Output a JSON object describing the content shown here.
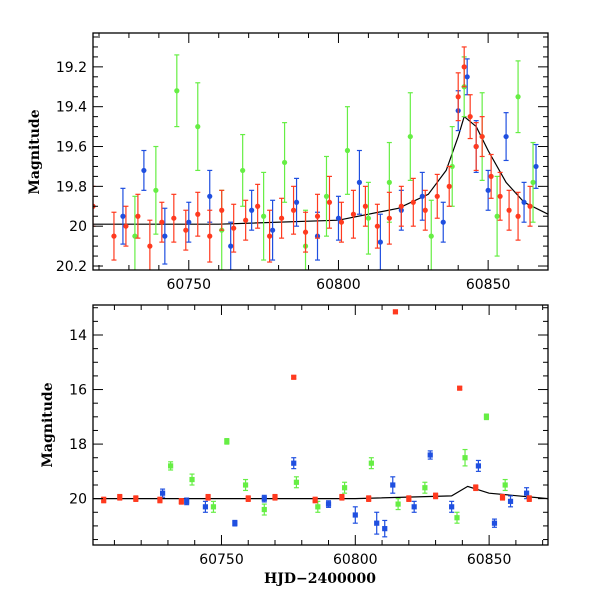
{
  "colors": {
    "blue": "#1f4fe0",
    "green": "#66ee44",
    "red": "#ff3a1f",
    "model": "#000000"
  },
  "chart_data": [
    {
      "type": "scatter",
      "title": "",
      "xlabel": "",
      "ylabel": "Magnitude",
      "xlim": [
        60718,
        60870
      ],
      "ylim": [
        20.22,
        19.03
      ],
      "y_inverted": true,
      "grid": false,
      "xticks": [
        "60750",
        "60800",
        "60850"
      ],
      "yticks": [
        "19.2",
        "19.4",
        "19.6",
        "19.8",
        "20",
        "20.2"
      ],
      "model_curve": {
        "x": [
          60718,
          60760,
          60800,
          60820,
          60830,
          60836,
          60840,
          60842,
          60846,
          60850,
          60856,
          60862,
          60870
        ],
        "y": [
          19.99,
          19.99,
          19.97,
          19.91,
          19.84,
          19.72,
          19.55,
          19.45,
          19.5,
          19.62,
          19.78,
          19.88,
          19.94
        ]
      },
      "series": [
        {
          "color_key": "blue",
          "x": [
            60728,
            60735,
            60742,
            60750,
            60757,
            60764,
            60771,
            60778,
            60786,
            60793,
            60800,
            60807,
            60814,
            60821,
            60828,
            60835,
            60840,
            60843,
            60846,
            60850,
            60856,
            60862,
            60866
          ],
          "y": [
            19.95,
            19.72,
            20.05,
            19.98,
            19.85,
            20.1,
            19.92,
            20.02,
            19.88,
            20.05,
            19.96,
            19.78,
            20.08,
            19.92,
            19.85,
            19.98,
            19.42,
            19.25,
            19.6,
            19.82,
            19.55,
            19.88,
            19.7
          ],
          "err": [
            0.14,
            0.1,
            0.14,
            0.1,
            0.13,
            0.12,
            0.1,
            0.15,
            0.12,
            0.12,
            0.11,
            0.16,
            0.14,
            0.1,
            0.12,
            0.1,
            0.1,
            0.09,
            0.13,
            0.1,
            0.12,
            0.1,
            0.11
          ]
        },
        {
          "color_key": "green",
          "x": [
            60732,
            60739,
            60746,
            60753,
            60761,
            60768,
            60775,
            60782,
            60789,
            60796,
            60803,
            60810,
            60817,
            60824,
            60831,
            60838,
            60842,
            60848,
            60853,
            60860,
            60865
          ],
          "y": [
            20.05,
            19.82,
            19.32,
            19.5,
            20.02,
            19.72,
            19.95,
            19.68,
            20.1,
            19.85,
            19.62,
            19.96,
            19.78,
            19.55,
            20.05,
            19.7,
            19.3,
            19.55,
            19.95,
            19.35,
            19.78
          ],
          "err": [
            0.2,
            0.22,
            0.18,
            0.22,
            0.2,
            0.18,
            0.22,
            0.2,
            0.18,
            0.2,
            0.22,
            0.18,
            0.2,
            0.22,
            0.18,
            0.2,
            0.15,
            0.22,
            0.2,
            0.18,
            0.2
          ]
        },
        {
          "color_key": "red",
          "x": [
            60718,
            60725,
            60729,
            60733,
            60737,
            60741,
            60745,
            60749,
            60753,
            60757,
            60761,
            60765,
            60769,
            60773,
            60777,
            60781,
            60785,
            60789,
            60793,
            60797,
            60801,
            60805,
            60809,
            60813,
            60817,
            60821,
            60825,
            60829,
            60833,
            60837,
            60840,
            60842,
            60844,
            60846,
            60848,
            60851,
            60854,
            60857,
            60860,
            60864
          ],
          "y": [
            19.9,
            20.05,
            20.0,
            19.95,
            20.1,
            19.98,
            19.96,
            20.02,
            19.94,
            20.05,
            19.92,
            20.01,
            19.97,
            19.9,
            20.05,
            19.96,
            19.92,
            20.03,
            19.95,
            19.88,
            19.98,
            19.94,
            19.9,
            20.0,
            19.96,
            19.9,
            19.88,
            19.92,
            19.85,
            19.8,
            19.35,
            19.2,
            19.45,
            19.6,
            19.55,
            19.75,
            19.85,
            19.92,
            19.95,
            19.9
          ],
          "err": [
            0.1,
            0.12,
            0.1,
            0.11,
            0.13,
            0.1,
            0.12,
            0.1,
            0.11,
            0.13,
            0.1,
            0.12,
            0.1,
            0.11,
            0.13,
            0.1,
            0.12,
            0.1,
            0.11,
            0.13,
            0.1,
            0.12,
            0.1,
            0.11,
            0.13,
            0.1,
            0.12,
            0.1,
            0.11,
            0.1,
            0.12,
            0.1,
            0.11,
            0.12,
            0.1,
            0.11,
            0.12,
            0.1,
            0.12,
            0.1
          ]
        }
      ]
    },
    {
      "type": "scatter",
      "title": "",
      "xlabel": "HJD−2400000",
      "ylabel": "Magnitude",
      "xlim": [
        60702,
        60872
      ],
      "ylim": [
        21.7,
        12.9
      ],
      "y_inverted": true,
      "grid": false,
      "xticks": [
        "60750",
        "60800",
        "60850"
      ],
      "yticks": [
        "14",
        "16",
        "18",
        "20"
      ],
      "model_curve": {
        "x": [
          60702,
          60800,
          60836,
          60842,
          60850,
          60872
        ],
        "y": [
          20.0,
          20.0,
          19.9,
          19.55,
          19.8,
          20.0
        ]
      },
      "series": [
        {
          "color_key": "blue",
          "x": [
            60728,
            60737,
            60744,
            60755,
            60766,
            60777,
            60790,
            60800,
            60808,
            60811,
            60814,
            60822,
            60828,
            60836,
            60846,
            60852,
            60858,
            60864
          ],
          "y": [
            19.8,
            20.1,
            20.3,
            20.9,
            20.0,
            18.7,
            20.2,
            20.6,
            20.9,
            21.1,
            19.5,
            20.3,
            18.4,
            20.3,
            18.8,
            20.9,
            20.1,
            19.8
          ],
          "err": [
            0.15,
            0.12,
            0.2,
            0.1,
            0.12,
            0.2,
            0.12,
            0.3,
            0.4,
            0.3,
            0.3,
            0.2,
            0.15,
            0.2,
            0.2,
            0.15,
            0.2,
            0.2
          ]
        },
        {
          "color_key": "green",
          "x": [
            60731,
            60739,
            60747,
            60752,
            60759,
            60766,
            60778,
            60786,
            60796,
            60806,
            60816,
            60826,
            60838,
            60841,
            60849,
            60856
          ],
          "y": [
            18.8,
            19.3,
            20.3,
            17.9,
            19.5,
            20.4,
            19.4,
            20.3,
            19.6,
            18.7,
            20.2,
            19.6,
            20.7,
            18.5,
            17.0,
            19.5
          ],
          "err": [
            0.15,
            0.2,
            0.2,
            0.1,
            0.2,
            0.2,
            0.2,
            0.2,
            0.2,
            0.2,
            0.2,
            0.2,
            0.2,
            0.3,
            0.1,
            0.2
          ]
        },
        {
          "color_key": "red",
          "x": [
            60706,
            60712,
            60718,
            60727,
            60735,
            60745,
            60760,
            60770,
            60777,
            60785,
            60795,
            60805,
            60815,
            60820,
            60830,
            60839,
            60845,
            60855,
            60865
          ],
          "y": [
            20.05,
            19.95,
            20.0,
            20.05,
            20.1,
            19.95,
            20.0,
            19.95,
            15.55,
            20.05,
            19.95,
            20.0,
            13.15,
            20.0,
            19.9,
            15.95,
            19.6,
            19.95,
            20.0
          ],
          "err": [
            0.1,
            0.1,
            0.1,
            0.1,
            0.1,
            0.1,
            0.1,
            0.1,
            0.05,
            0.1,
            0.1,
            0.1,
            0.05,
            0.1,
            0.1,
            0.05,
            0.1,
            0.1,
            0.1
          ]
        }
      ]
    }
  ]
}
